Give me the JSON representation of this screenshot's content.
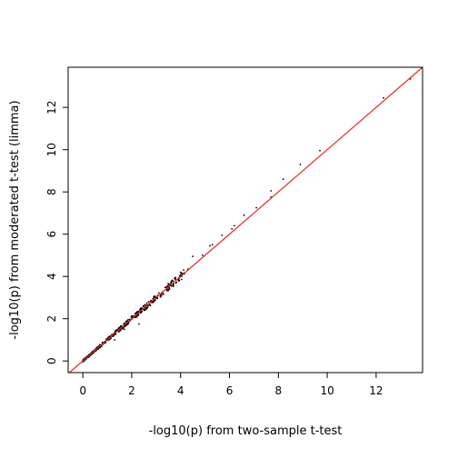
{
  "chart_data": {
    "type": "scatter",
    "title": "",
    "xlabel": "-log10(p) from two-sample t-test",
    "ylabel": "-log10(p) from moderated t-test (limma)",
    "xlim": [
      -0.6,
      13.9
    ],
    "ylim": [
      -0.55,
      13.9
    ],
    "xticks": [
      0,
      2,
      4,
      6,
      8,
      10,
      12
    ],
    "yticks": [
      0,
      2,
      4,
      6,
      8,
      10,
      12
    ],
    "grid": false,
    "legend": "none",
    "point_color": "#000000",
    "reference_line": {
      "intercept": 0,
      "slope": 1,
      "color": "#ee2222"
    },
    "highlight_points": [
      {
        "x": 13.4,
        "y": 13.35
      },
      {
        "x": 12.3,
        "y": 12.45
      },
      {
        "x": 9.7,
        "y": 9.95
      },
      {
        "x": 8.9,
        "y": 9.3
      },
      {
        "x": 8.2,
        "y": 8.6
      },
      {
        "x": 7.7,
        "y": 8.05
      },
      {
        "x": 7.7,
        "y": 7.75
      },
      {
        "x": 7.1,
        "y": 7.25
      },
      {
        "x": 6.6,
        "y": 6.9
      },
      {
        "x": 6.2,
        "y": 6.4
      },
      {
        "x": 6.1,
        "y": 6.25
      },
      {
        "x": 5.7,
        "y": 5.95
      },
      {
        "x": 5.3,
        "y": 5.5
      },
      {
        "x": 5.2,
        "y": 5.45
      },
      {
        "x": 4.9,
        "y": 5.0
      },
      {
        "x": 4.5,
        "y": 4.95
      },
      {
        "x": 4.3,
        "y": 4.35
      },
      {
        "x": 4.0,
        "y": 4.2
      },
      {
        "x": 3.8,
        "y": 3.95
      },
      {
        "x": 3.5,
        "y": 3.55
      },
      {
        "x": 3.3,
        "y": 3.15
      },
      {
        "x": 2.6,
        "y": 2.45
      },
      {
        "x": 2.3,
        "y": 1.75
      },
      {
        "x": 1.3,
        "y": 1.0
      },
      {
        "x": 1.7,
        "y": 1.5
      }
    ],
    "cloud": {
      "x_min": 0,
      "x_max": 4.2,
      "count": 420,
      "spread": 0.09
    }
  }
}
